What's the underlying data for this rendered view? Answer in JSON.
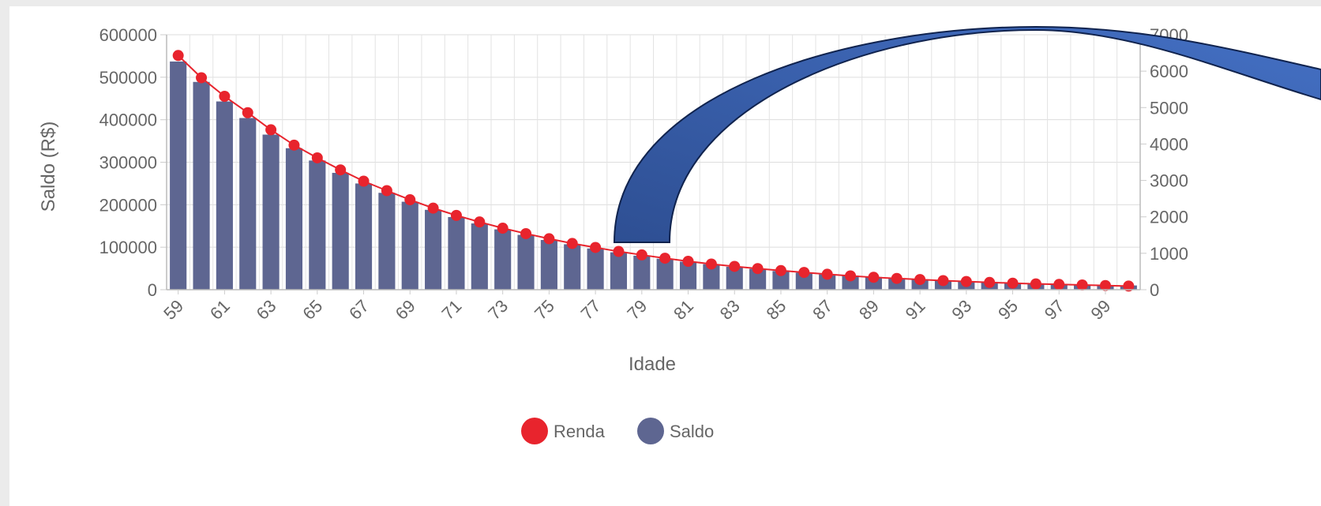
{
  "chart_data": {
    "type": "bar",
    "xlabel": "Idade",
    "ylabel_left": "Saldo (R$)",
    "ylabel_right": "",
    "ylim_left": [
      0,
      600000
    ],
    "ylim_right": [
      0,
      7000
    ],
    "yticks_left": [
      "0",
      "100000",
      "200000",
      "300000",
      "400000",
      "500000",
      "600000"
    ],
    "yticks_right": [
      "0",
      "1000",
      "2000",
      "3000",
      "4000",
      "5000",
      "6000",
      "7000"
    ],
    "x": [
      "59",
      "60",
      "61",
      "62",
      "63",
      "64",
      "65",
      "66",
      "67",
      "68",
      "69",
      "70",
      "71",
      "72",
      "73",
      "74",
      "75",
      "76",
      "77",
      "78",
      "79",
      "80",
      "81",
      "82",
      "83",
      "84",
      "85",
      "86",
      "87",
      "88",
      "89",
      "90",
      "91",
      "92",
      "93",
      "94",
      "95",
      "96",
      "97",
      "98",
      "99",
      "100"
    ],
    "x_tick_labels": [
      "59",
      "61",
      "63",
      "65",
      "67",
      "69",
      "71",
      "73",
      "75",
      "77",
      "79",
      "81",
      "83",
      "85",
      "87",
      "89",
      "91",
      "93",
      "95",
      "97",
      "99"
    ],
    "series": [
      {
        "name": "Renda",
        "type": "line",
        "axis": "right",
        "color": "#e8242d",
        "values": [
          6430,
          5820,
          5310,
          4860,
          4390,
          3970,
          3620,
          3290,
          2980,
          2720,
          2470,
          2240,
          2040,
          1860,
          1690,
          1540,
          1400,
          1270,
          1160,
          1050,
          955,
          865,
          780,
          705,
          640,
          580,
          525,
          475,
          425,
          380,
          340,
          310,
          280,
          250,
          225,
          200,
          180,
          160,
          145,
          130,
          115,
          100
        ]
      },
      {
        "name": "Saldo",
        "type": "bar",
        "axis": "left",
        "color": "#5e6691",
        "values": [
          537000,
          489000,
          443000,
          404000,
          365000,
          333000,
          304000,
          275000,
          250000,
          228000,
          207000,
          188000,
          171000,
          156000,
          142000,
          129000,
          117000,
          107000,
          97000,
          88000,
          80000,
          73000,
          66000,
          60000,
          54000,
          49000,
          44000,
          40000,
          36000,
          33000,
          30000,
          27000,
          24000,
          22000,
          20000,
          18000,
          16000,
          15000,
          13000,
          12000,
          11000,
          10000
        ]
      }
    ],
    "legend_position": "bottom",
    "grid": true
  },
  "legend": {
    "renda_label": "Renda",
    "saldo_label": "Saldo"
  },
  "annotation": {
    "shape": "curved-arrow",
    "color": "#3b5ea6"
  }
}
